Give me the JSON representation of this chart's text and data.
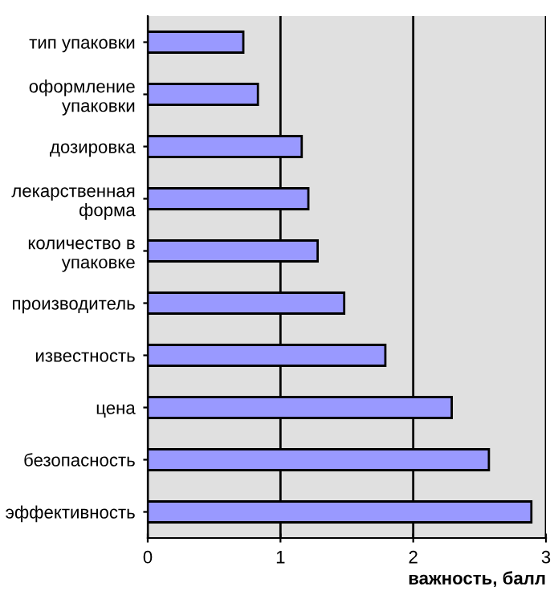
{
  "chart_data": {
    "type": "bar",
    "orientation": "horizontal",
    "categories": [
      "тип упаковки",
      "оформление\nупаковки",
      "дозировка",
      "лекарственная\nформа",
      "количество в\nупаковке",
      "производитель",
      "известность",
      "цена",
      "безопасность",
      "эффективность"
    ],
    "values": [
      0.72,
      0.83,
      1.16,
      1.21,
      1.28,
      1.48,
      1.79,
      2.29,
      2.57,
      2.89
    ],
    "color": "#9999ff",
    "xlim": [
      0,
      3
    ],
    "xticks": [
      0,
      1,
      2,
      3
    ],
    "grid": "x",
    "xlabel": "важность, балл"
  }
}
